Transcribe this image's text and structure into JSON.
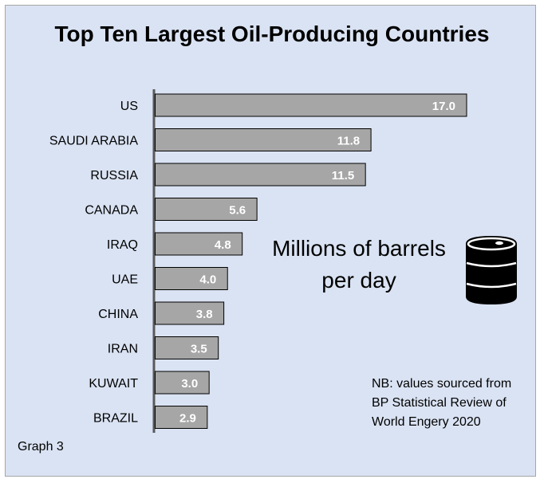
{
  "chart_data": {
    "type": "bar",
    "orientation": "horizontal",
    "title": "Top Ten Largest Oil-Producing Countries",
    "categories": [
      "US",
      "SAUDI ARABIA",
      "RUSSIA",
      "CANADA",
      "IRAQ",
      "UAE",
      "CHINA",
      "IRAN",
      "KUWAIT",
      "BRAZIL"
    ],
    "values": [
      17.0,
      11.8,
      11.5,
      5.6,
      4.8,
      4.0,
      3.8,
      3.5,
      3.0,
      2.9
    ],
    "value_labels": [
      "17.0",
      "11.8",
      "11.5",
      "5.6",
      "4.8",
      "4.0",
      "3.8",
      "3.5",
      "3.0",
      "2.9"
    ],
    "xlim": [
      0,
      17.5
    ],
    "grid": false,
    "legend": "none",
    "bar_color": "#a6a6a6",
    "bar_edge_color": "#000000",
    "annotation_unit": "Millions of barrels per day",
    "note": "NB: values sourced from BP Statistical Review of World Engery 2020"
  },
  "graph_label": "Graph 3",
  "icons": {
    "barrel": "oil-barrel-icon"
  },
  "colors": {
    "background": "#dae3f3",
    "bar": "#a6a6a6",
    "value_text": "#ffffff"
  }
}
